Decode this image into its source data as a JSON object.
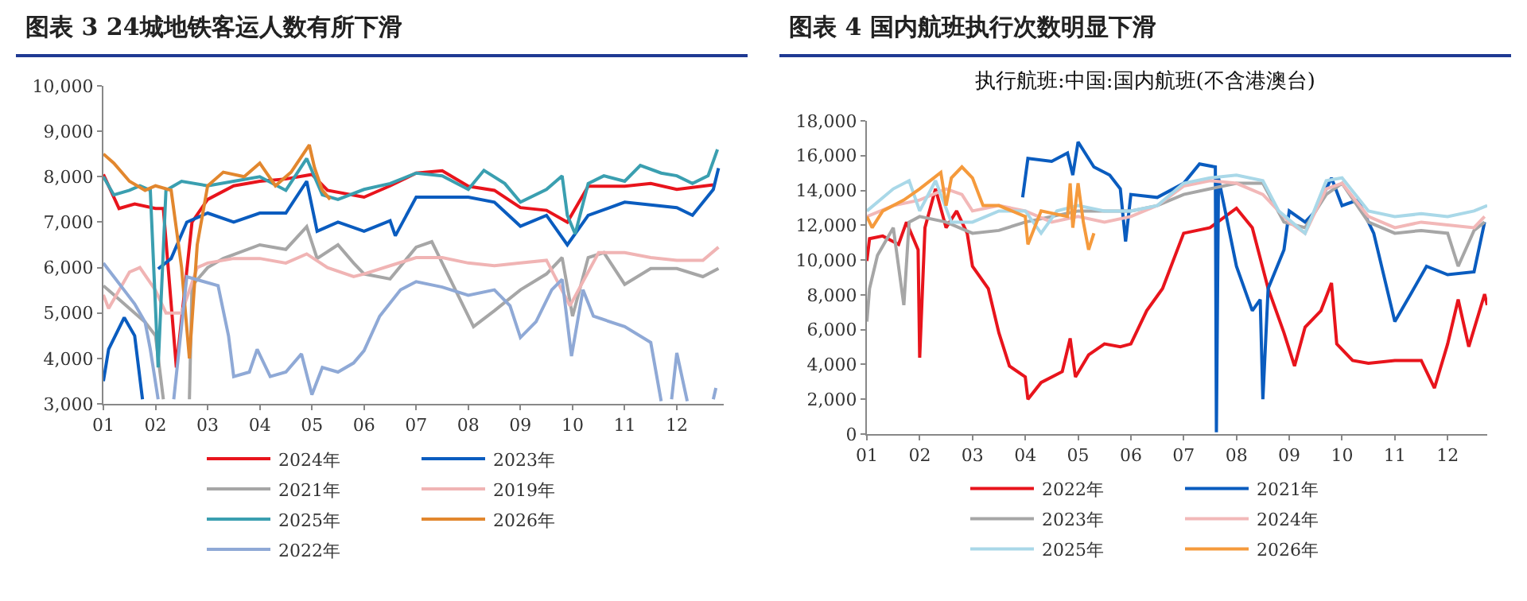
{
  "chart_data": [
    {
      "type": "line",
      "title": "图表 3   24城地铁客运人数有所下滑",
      "legend": "bottom",
      "xlim": [
        1,
        12.9
      ],
      "xticks": [
        {
          "value": 1,
          "label": "01"
        },
        {
          "value": 2,
          "label": "02"
        },
        {
          "value": 3,
          "label": "03"
        },
        {
          "value": 4,
          "label": "04"
        },
        {
          "value": 5,
          "label": "05"
        },
        {
          "value": 6,
          "label": "06"
        },
        {
          "value": 7,
          "label": "07"
        },
        {
          "value": 8,
          "label": "08"
        },
        {
          "value": 9,
          "label": "09"
        },
        {
          "value": 10,
          "label": "10"
        },
        {
          "value": 11,
          "label": "11"
        },
        {
          "value": 12,
          "label": "12"
        }
      ],
      "ylim": [
        3000,
        10000
      ],
      "yticks": [
        {
          "value": 3000,
          "label": "3,000"
        },
        {
          "value": 4000,
          "label": "4,000"
        },
        {
          "value": 5000,
          "label": "5,000"
        },
        {
          "value": 6000,
          "label": "6,000"
        },
        {
          "value": 7000,
          "label": "7,000"
        },
        {
          "value": 8000,
          "label": "8,000"
        },
        {
          "value": 9000,
          "label": "9,000"
        },
        {
          "value": 10000,
          "label": "10,000"
        }
      ],
      "series": [
        {
          "name": "2024年",
          "color": "#e8141c",
          "x": [
            1,
            1.3,
            1.6,
            2,
            2.15,
            2.4,
            2.7,
            3,
            3.5,
            4,
            4.5,
            5,
            5.3,
            6,
            6.5,
            7,
            7.5,
            8,
            8.5,
            9,
            9.5,
            9.9,
            10.3,
            11,
            11.5,
            12,
            12.7
          ],
          "values": [
            8050,
            7300,
            7400,
            7300,
            7300,
            3800,
            7000,
            7500,
            7800,
            7900,
            7950,
            8050,
            7700,
            7550,
            7800,
            8080,
            8130,
            7790,
            7700,
            7320,
            7260,
            7000,
            7790,
            7790,
            7850,
            7720,
            7820
          ]
        },
        {
          "name": "2023年",
          "color": "#0a5cbf",
          "x": [
            1,
            1.1,
            1.4,
            1.6,
            1.75,
            1.8,
            2.05,
            2.3,
            2.6,
            3,
            3.5,
            4,
            4.5,
            4.9,
            5.1,
            5.5,
            6,
            6.5,
            6.6,
            7,
            7.5,
            8,
            8.5,
            9,
            9.5,
            9.9,
            10.3,
            11,
            11.5,
            12,
            12.3,
            12.7,
            12.8
          ],
          "values": [
            3500,
            4200,
            4900,
            4500,
            3100,
            null,
            5970,
            6200,
            7000,
            7200,
            7000,
            7200,
            7200,
            7900,
            6800,
            7000,
            6800,
            7030,
            6700,
            7550,
            7550,
            7550,
            7440,
            6910,
            7150,
            6500,
            7150,
            7440,
            7380,
            7320,
            7150,
            7720,
            8190
          ]
        },
        {
          "name": "2021年",
          "color": "#a6a6a6",
          "x": [
            1,
            1.3,
            1.6,
            1.8,
            2,
            2.15,
            2.4,
            2.65,
            2.7,
            3,
            3.3,
            4,
            4.5,
            4.9,
            5.1,
            5.5,
            5.8,
            6,
            6.5,
            7,
            7.3,
            7.7,
            8.1,
            8.5,
            9,
            9.5,
            9.8,
            10,
            10.3,
            10.6,
            11,
            11.5,
            12,
            12.5,
            12.8
          ],
          "values": [
            5600,
            5300,
            5000,
            4800,
            4500,
            3100,
            null,
            3100,
            5600,
            6000,
            6200,
            6500,
            6400,
            6900,
            6200,
            6500,
            6100,
            5860,
            5750,
            6450,
            6570,
            5630,
            4700,
            5050,
            5510,
            5860,
            6220,
            4930,
            6220,
            6330,
            5630,
            5980,
            5980,
            5800,
            5980
          ]
        },
        {
          "name": "2019年",
          "color": "#f0b4b4",
          "x": [
            1,
            1.1,
            1.3,
            1.5,
            1.7,
            2,
            2.2,
            2.5,
            2.8,
            3,
            3.5,
            4,
            4.5,
            4.9,
            5.3,
            5.8,
            6,
            6.5,
            7,
            7.5,
            8,
            8.5,
            9,
            9.5,
            9.95,
            10.5,
            11,
            11.5,
            12,
            12.5,
            12.8
          ],
          "values": [
            5400,
            5100,
            5500,
            5900,
            6000,
            5500,
            5000,
            5000,
            6000,
            6100,
            6200,
            6200,
            6100,
            6300,
            6000,
            5800,
            5860,
            6040,
            6220,
            6220,
            6100,
            6040,
            6100,
            6160,
            5160,
            6330,
            6330,
            6220,
            6160,
            6160,
            6450
          ]
        },
        {
          "name": "2025年",
          "color": "#3a9fb0",
          "x": [
            1,
            1.2,
            1.5,
            1.7,
            1.9,
            2.05,
            2.2,
            2.5,
            3,
            3.5,
            4,
            4.5,
            4.9,
            5.2,
            5.5,
            6,
            6.5,
            7,
            7.5,
            8,
            8.3,
            8.7,
            9,
            9.5,
            9.8,
            9.9,
            10.05,
            10.3,
            10.6,
            11,
            11.3,
            11.7,
            12,
            12.3,
            12.6,
            12.78
          ],
          "values": [
            8000,
            7600,
            7700,
            7800,
            7700,
            3800,
            7700,
            7900,
            7800,
            7900,
            8000,
            7700,
            8400,
            7600,
            7500,
            7720,
            7850,
            8080,
            8020,
            7720,
            8140,
            7850,
            7440,
            7720,
            8020,
            7150,
            6740,
            7850,
            8020,
            7900,
            8250,
            8080,
            8020,
            7850,
            8020,
            8600
          ]
        },
        {
          "name": "2026年",
          "color": "#e2872e",
          "x": [
            1,
            1.2,
            1.5,
            1.8,
            2,
            2.3,
            2.5,
            2.65,
            2.8,
            3,
            3.3,
            3.7,
            4,
            4.3,
            4.6,
            4.95,
            5.05,
            5.2,
            5.35
          ],
          "values": [
            8500,
            8300,
            7900,
            7700,
            7800,
            7700,
            6000,
            4000,
            6500,
            7800,
            8100,
            8000,
            8300,
            7800,
            8100,
            8700,
            8200,
            7700,
            7500
          ]
        },
        {
          "name": "2022年",
          "color": "#8fa9d6",
          "x": [
            1,
            1.2,
            1.4,
            1.6,
            1.8,
            1.9,
            2.05,
            2.2,
            2.35,
            2.6,
            2.9,
            3.2,
            3.4,
            3.5,
            3.8,
            3.95,
            4.2,
            4.5,
            4.8,
            5,
            5.2,
            5.5,
            5.8,
            6,
            6.3,
            6.7,
            7,
            7.5,
            8,
            8.5,
            8.8,
            9,
            9.3,
            9.6,
            9.8,
            9.98,
            10.2,
            10.4,
            11,
            11.5,
            11.7,
            11.8,
            11.9,
            12,
            12.2,
            12.3,
            12.7,
            12.75
          ],
          "values": [
            6100,
            5800,
            5500,
            5200,
            4800,
            4200,
            3100,
            null,
            3100,
            5800,
            5700,
            5600,
            4500,
            3600,
            3700,
            4200,
            3600,
            3700,
            4100,
            3200,
            3800,
            3700,
            3900,
            4170,
            4930,
            5510,
            5690,
            5570,
            5390,
            5510,
            5160,
            4460,
            4810,
            5510,
            5740,
            4050,
            5510,
            4930,
            4700,
            4350,
            3060,
            null,
            3100,
            4120,
            3060,
            null,
            3100,
            3350
          ]
        }
      ]
    },
    {
      "type": "line",
      "title": "图表 4   国内航班执行次数明显下滑",
      "subtitle": "执行航班:中国:国内航班(不含港澳台)",
      "legend": "bottom",
      "xlim": [
        1,
        12.75
      ],
      "xticks": [
        {
          "value": 1,
          "label": "01"
        },
        {
          "value": 2,
          "label": "02"
        },
        {
          "value": 3,
          "label": "03"
        },
        {
          "value": 4,
          "label": "04"
        },
        {
          "value": 5,
          "label": "05"
        },
        {
          "value": 6,
          "label": "06"
        },
        {
          "value": 7,
          "label": "07"
        },
        {
          "value": 8,
          "label": "08"
        },
        {
          "value": 9,
          "label": "09"
        },
        {
          "value": 10,
          "label": "10"
        },
        {
          "value": 11,
          "label": "11"
        },
        {
          "value": 12,
          "label": "12"
        }
      ],
      "ylim": [
        0,
        18000
      ],
      "yticks": [
        0,
        {
          "value": 2000,
          "label": "2,000"
        },
        {
          "value": 4000,
          "label": "4,000"
        },
        {
          "value": 6000,
          "label": "6,000"
        },
        {
          "value": 8000,
          "label": "8,000"
        },
        {
          "value": 10000,
          "label": "10,000"
        },
        {
          "value": 12000,
          "label": "12,000"
        },
        {
          "value": 14000,
          "label": "14,000"
        },
        {
          "value": 16000,
          "label": "16,000"
        },
        {
          "value": 18000,
          "label": "18,000"
        }
      ],
      "series": [
        {
          "name": "2022年",
          "color": "#e8141c",
          "x": [
            1,
            1.05,
            1.3,
            1.6,
            1.75,
            1.97,
            2,
            2.1,
            2.3,
            2.5,
            2.7,
            2.9,
            3,
            3.3,
            3.5,
            3.7,
            4,
            4.05,
            4.3,
            4.7,
            4.85,
            4.95,
            5.2,
            5.5,
            5.8,
            6,
            6.3,
            6.6,
            7,
            7.5,
            8,
            8.3,
            8.6,
            8.9,
            9.1,
            9.3,
            9.6,
            9.8,
            9.9,
            10.2,
            10.5,
            11,
            11.5,
            11.75,
            12,
            12.2,
            12.4,
            12.7,
            12.75
          ],
          "values": [
            9950,
            11230,
            11380,
            10900,
            12180,
            10590,
            4390,
            11860,
            14090,
            11860,
            12820,
            11540,
            9640,
            8360,
            5820,
            3910,
            3280,
            2000,
            2960,
            3590,
            5500,
            3280,
            4550,
            5180,
            5020,
            5180,
            7090,
            8360,
            11540,
            11860,
            12980,
            11860,
            8360,
            5820,
            3910,
            6140,
            7090,
            8680,
            5180,
            4230,
            4070,
            4230,
            4230,
            2640,
            5180,
            7730,
            5020,
            8040,
            7410
          ]
        },
        {
          "name": "2021年",
          "color": "#0a5cbf",
          "x": [
            3.95,
            4.05,
            4.5,
            4.8,
            4.9,
            5,
            5.3,
            5.6,
            5.8,
            5.9,
            6,
            6.5,
            7,
            7.3,
            7.6,
            7.62,
            7.66,
            8,
            8.3,
            8.45,
            8.5,
            8.6,
            8.9,
            9,
            9.3,
            9.5,
            9.8,
            10,
            10.3,
            10.6,
            11,
            11.3,
            11.6,
            12,
            12.5,
            12.7
          ],
          "values": [
            13600,
            15840,
            15670,
            16150,
            14880,
            16790,
            15350,
            14880,
            14090,
            11070,
            13770,
            13600,
            14410,
            15520,
            15350,
            100,
            14720,
            9640,
            7090,
            7730,
            2000,
            8360,
            10590,
            12820,
            12180,
            12820,
            14720,
            13130,
            13450,
            11540,
            6460,
            8040,
            9640,
            9160,
            9320,
            12180
          ]
        },
        {
          "name": "2023年",
          "color": "#a6a6a6",
          "x": [
            1,
            1.05,
            1.2,
            1.5,
            1.7,
            1.8,
            2,
            2.5,
            3,
            3.5,
            4,
            4.5,
            5,
            6,
            6.5,
            7,
            7.5,
            8,
            8.5,
            8.9,
            9.3,
            9.7,
            10,
            10.5,
            11,
            11.5,
            12,
            12.2,
            12.5,
            12.7
          ],
          "values": [
            6460,
            8360,
            10270,
            11860,
            7410,
            12180,
            12500,
            12180,
            11540,
            11700,
            12180,
            12500,
            12820,
            12820,
            13130,
            13770,
            14090,
            14410,
            14410,
            12180,
            11860,
            13770,
            14410,
            12180,
            11540,
            11700,
            11540,
            9640,
            11700,
            12180
          ]
        },
        {
          "name": "2024年",
          "color": "#f2b8b8",
          "x": [
            1,
            1.5,
            2,
            2.5,
            2.8,
            3,
            3.5,
            4,
            4.5,
            5,
            5.5,
            6,
            6.5,
            7,
            7.5,
            8,
            8.5,
            9,
            9.3,
            9.7,
            10,
            10.5,
            11,
            11.5,
            12,
            12.5,
            12.7
          ],
          "values": [
            12500,
            13130,
            13450,
            14090,
            13770,
            12820,
            13130,
            12820,
            12180,
            12500,
            12180,
            12500,
            13130,
            14250,
            14560,
            14410,
            13770,
            12180,
            11540,
            14090,
            14410,
            12500,
            11860,
            12180,
            12020,
            11860,
            12500
          ]
        },
        {
          "name": "2025年",
          "color": "#a9d8e8",
          "x": [
            1,
            1.5,
            1.8,
            2,
            2.3,
            2.6,
            3,
            3.5,
            4,
            4.3,
            4.6,
            5,
            5.5,
            6,
            6.5,
            7,
            7.5,
            8,
            8.5,
            8.8,
            9.3,
            9.7,
            10,
            10.5,
            11,
            11.5,
            12,
            12.5,
            12.75
          ],
          "values": [
            12820,
            14090,
            14560,
            12820,
            14560,
            12180,
            12180,
            12820,
            12820,
            11540,
            12820,
            13130,
            12820,
            12820,
            13130,
            14410,
            14720,
            14880,
            14560,
            12820,
            11540,
            14560,
            14720,
            12820,
            12500,
            12660,
            12500,
            12820,
            13130
          ]
        },
        {
          "name": "2026年",
          "color": "#f59a3c",
          "x": [
            1,
            1.1,
            1.3,
            1.7,
            2,
            2.4,
            2.5,
            2.6,
            2.8,
            3,
            3.2,
            3.5,
            4,
            4.05,
            4.3,
            4.8,
            4.85,
            4.9,
            5,
            5.1,
            5.2,
            5.3
          ],
          "values": [
            12500,
            11860,
            12820,
            13450,
            14090,
            15040,
            13130,
            14720,
            15350,
            14720,
            13130,
            13130,
            12500,
            10900,
            12820,
            12500,
            14410,
            11860,
            14410,
            12180,
            10590,
            11540
          ]
        }
      ]
    }
  ]
}
